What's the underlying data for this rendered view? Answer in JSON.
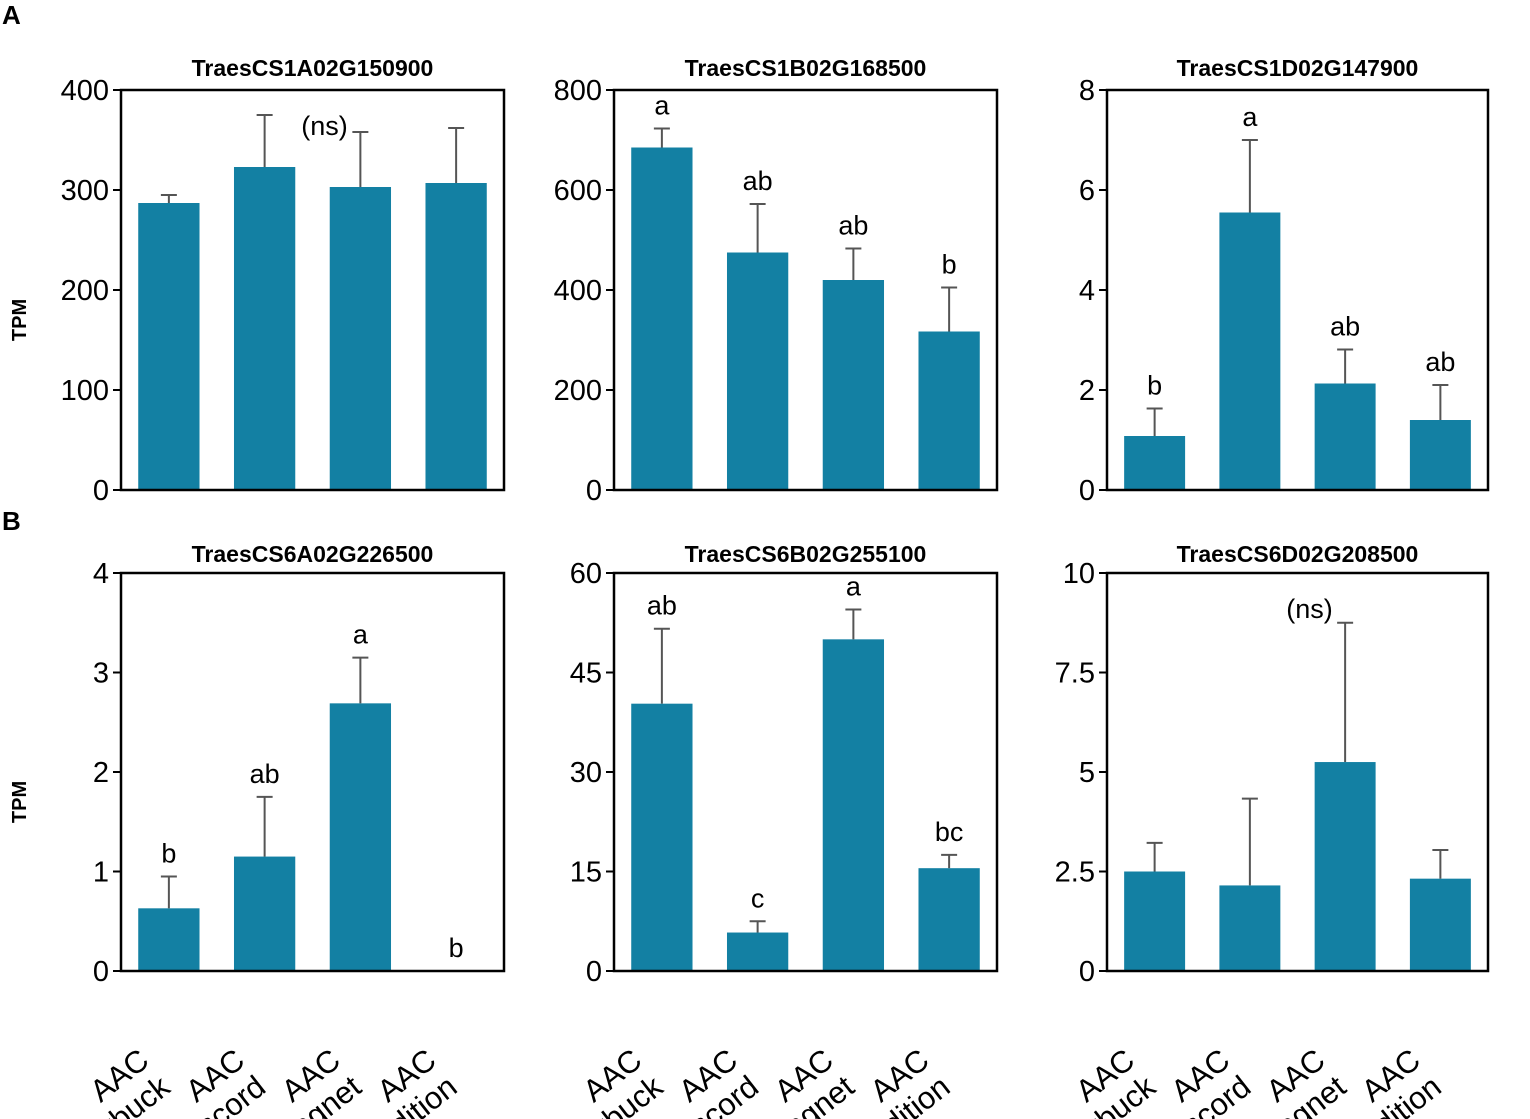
{
  "panel_labels": [
    "A",
    "B"
  ],
  "colors": {
    "bar": "#1380a3",
    "axis": "#000000",
    "error": "#555555"
  },
  "chart_data": [
    {
      "type": "bar",
      "row": "A",
      "title": "TraesCS1A02G150900",
      "ylabel": "TPM",
      "categories": [
        "AAC Starbuck",
        "AAC Concord",
        "AAC Magnet",
        "AAC Tradition"
      ],
      "values": [
        287,
        323,
        303,
        307
      ],
      "errors": [
        8,
        52,
        55,
        55
      ],
      "letters": [],
      "note": "(ns)",
      "ylim": [
        0,
        400
      ],
      "yticks": [
        "0",
        "100",
        "200",
        "300",
        "400"
      ]
    },
    {
      "type": "bar",
      "row": "A",
      "title": "TraesCS1B02G168500",
      "ylabel": "",
      "categories": [
        "AAC Starbuck",
        "AAC Concord",
        "AAC Magnet",
        "AAC Tradition"
      ],
      "values": [
        685,
        475,
        420,
        317
      ],
      "errors": [
        38,
        97,
        63,
        88
      ],
      "letters": [
        "a",
        "ab",
        "ab",
        "b"
      ],
      "note": "",
      "ylim": [
        0,
        800
      ],
      "yticks": [
        "0",
        "200",
        "400",
        "600",
        "800"
      ]
    },
    {
      "type": "bar",
      "row": "A",
      "title": "TraesCS1D02G147900",
      "ylabel": "",
      "categories": [
        "AAC Starbuck",
        "AAC Concord",
        "AAC Magnet",
        "AAC Tradition"
      ],
      "values": [
        1.08,
        5.55,
        2.13,
        1.4
      ],
      "errors": [
        0.55,
        1.45,
        0.68,
        0.7
      ],
      "letters": [
        "b",
        "a",
        "ab",
        "ab"
      ],
      "note": "",
      "ylim": [
        0,
        8
      ],
      "yticks": [
        "0",
        "2",
        "4",
        "6",
        "8"
      ]
    },
    {
      "type": "bar",
      "row": "B",
      "title": "TraesCS6A02G226500",
      "ylabel": "TPM",
      "categories": [
        "AAC Starbuck",
        "AAC Concord",
        "AAC Magnet",
        "AAC Tradition"
      ],
      "values": [
        0.63,
        1.15,
        2.69,
        0
      ],
      "errors": [
        0.32,
        0.6,
        0.46,
        0
      ],
      "letters": [
        "b",
        "ab",
        "a",
        "b"
      ],
      "note": "",
      "ylim": [
        0,
        4
      ],
      "yticks": [
        "0",
        "1",
        "2",
        "3",
        "4"
      ]
    },
    {
      "type": "bar",
      "row": "B",
      "title": "TraesCS6B02G255100",
      "ylabel": "",
      "categories": [
        "AAC Starbuck",
        "AAC Concord",
        "AAC Magnet",
        "AAC Tradition"
      ],
      "values": [
        40.3,
        5.8,
        50,
        15.5
      ],
      "errors": [
        11.3,
        1.7,
        4.5,
        2
      ],
      "letters": [
        "ab",
        "c",
        "a",
        "bc"
      ],
      "note": "",
      "ylim": [
        0,
        60
      ],
      "yticks": [
        "0",
        "15",
        "30",
        "45",
        "60"
      ]
    },
    {
      "type": "bar",
      "row": "B",
      "title": "TraesCS6D02G208500",
      "ylabel": "",
      "categories": [
        "AAC Starbuck",
        "AAC Concord",
        "AAC Magnet",
        "AAC Tradition"
      ],
      "values": [
        2.5,
        2.15,
        5.25,
        2.32
      ],
      "errors": [
        0.72,
        2.18,
        3.5,
        0.72
      ],
      "letters": [],
      "note": "(ns)",
      "ylim": [
        0,
        10
      ],
      "yticks": [
        "0",
        "2.5",
        "5",
        "7.5",
        "10"
      ]
    }
  ]
}
